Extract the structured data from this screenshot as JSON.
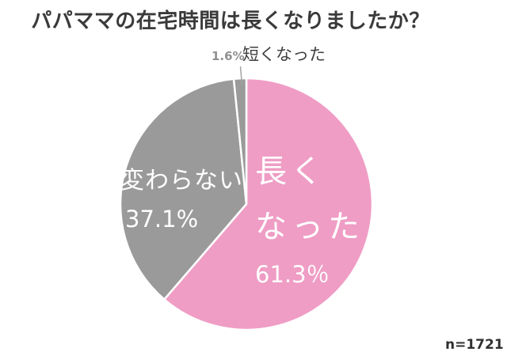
{
  "title": "パパママの在宅時間は長くなりましたか？",
  "colors": {
    "background": "#ffffff",
    "pink": "#ef9dc5",
    "gray": "#9a9a9a",
    "slice_border": "#ffffff",
    "title_text": "#3a3a3a",
    "callout_pct_text": "#8f8f8f",
    "callout_label_text": "#3f3f3f",
    "leader_line": "#a3a3a3",
    "inside_label_text": "#ffffff"
  },
  "chart_data": {
    "type": "pie",
    "title": "パパママの在宅時間は長くなりましたか？",
    "direction": "clockwise",
    "start_angle_deg": 0,
    "legend": "none",
    "sample_size": "n=1721",
    "slices": [
      {
        "id": "longer",
        "label": "長くなった",
        "value_pct": 61.3,
        "pct_label": "61.3％",
        "color": "#ef9dc5",
        "label_lines": [
          "長く",
          "なった"
        ],
        "label_position": "inside"
      },
      {
        "id": "no-change",
        "label": "変わらない",
        "value_pct": 37.1,
        "pct_label": "37.1%",
        "color": "#9a9a9a",
        "label_lines": [
          "変わらない"
        ],
        "label_position": "inside"
      },
      {
        "id": "shorter",
        "label": "短くなった",
        "value_pct": 1.6,
        "pct_label": "1.6%",
        "color": "#9a9a9a",
        "label_lines": [],
        "label_position": "outside-callout"
      }
    ]
  }
}
